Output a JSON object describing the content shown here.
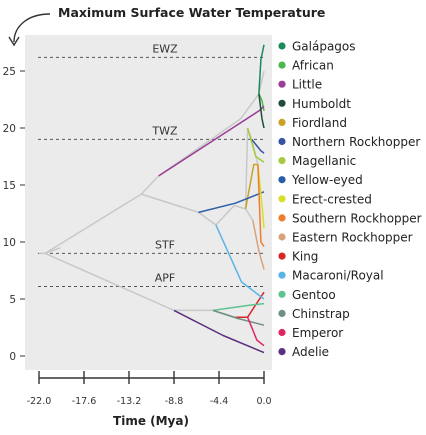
{
  "chart_data": {
    "type": "line",
    "title": "Maximum Surface Water Temperature",
    "xlabel": "Time (Mya)",
    "ylabel": "",
    "xlim": [
      -22.0,
      0.0
    ],
    "ylim": [
      0,
      27.5
    ],
    "x_ticks": [
      "-22.0",
      "-17.6",
      "-13.2",
      "-8.8",
      "-4.4",
      "0.0"
    ],
    "x_tick_values": [
      -22.0,
      -17.6,
      -13.2,
      -8.8,
      -4.4,
      0.0
    ],
    "y_ticks": [
      "0",
      "5",
      "10",
      "15",
      "20",
      "25"
    ],
    "y_tick_values": [
      0,
      5,
      10,
      15,
      20,
      25
    ],
    "grid": false,
    "legend_position": "right",
    "reference_lines": [
      {
        "label": "EWZ",
        "y": 26.2
      },
      {
        "label": "TWZ",
        "y": 19.0
      },
      {
        "label": "STF",
        "y": 9.0
      },
      {
        "label": "APF",
        "y": 6.1
      }
    ],
    "ancestral_color": "#c8c8c8",
    "ancestral_branches": [
      {
        "x": [
          -22.0,
          -21.4,
          -19.9
        ],
        "y": [
          9.0,
          9.0,
          9.5
        ]
      },
      {
        "x": [
          -21.4,
          -12.0
        ],
        "y": [
          9.0,
          14.2
        ]
      },
      {
        "x": [
          -12.0,
          -10.3
        ],
        "y": [
          14.2,
          15.8
        ]
      },
      {
        "x": [
          -10.3,
          -2.3
        ],
        "y": [
          15.8,
          20.8
        ]
      },
      {
        "x": [
          -2.3,
          -0.5
        ],
        "y": [
          20.8,
          23.0
        ]
      },
      {
        "x": [
          -0.5,
          0.0
        ],
        "y": [
          23.0,
          25.0
        ]
      },
      {
        "x": [
          -12.0,
          -6.4
        ],
        "y": [
          14.2,
          12.6
        ]
      },
      {
        "x": [
          -6.4,
          -4.7
        ],
        "y": [
          12.6,
          11.5
        ]
      },
      {
        "x": [
          -4.7,
          -2.9
        ],
        "y": [
          11.5,
          13.2
        ]
      },
      {
        "x": [
          -2.9,
          -1.8
        ],
        "y": [
          13.2,
          12.9
        ]
      },
      {
        "x": [
          -1.8,
          -1.6
        ],
        "y": [
          12.9,
          20.0
        ]
      },
      {
        "x": [
          -1.6,
          -1.2
        ],
        "y": [
          20.0,
          19.0
        ]
      },
      {
        "x": [
          -1.2,
          -0.6
        ],
        "y": [
          19.0,
          16.8
        ]
      },
      {
        "x": [
          -1.8,
          -1.1
        ],
        "y": [
          12.9,
          11.9
        ]
      },
      {
        "x": [
          -21.4,
          -8.8
        ],
        "y": [
          9.0,
          4.0
        ]
      },
      {
        "x": [
          -8.8,
          -5.0
        ],
        "y": [
          4.0,
          4.0
        ]
      },
      {
        "x": [
          -5.0,
          -2.8
        ],
        "y": [
          4.0,
          3.4
        ]
      },
      {
        "x": [
          -2.8,
          -1.6
        ],
        "y": [
          3.4,
          3.4
        ]
      }
    ],
    "series": [
      {
        "name": "Galápagos",
        "color": "#1a8a5a",
        "x": [
          -0.5,
          -0.3,
          0.0
        ],
        "y": [
          23.0,
          26.0,
          27.3
        ]
      },
      {
        "name": "African",
        "color": "#4cb84c",
        "x": [
          -0.5,
          -0.2,
          0.0
        ],
        "y": [
          23.0,
          22.4,
          21.5
        ]
      },
      {
        "name": "Little",
        "color": "#9b3d96",
        "x": [
          -10.3,
          -0.5,
          0.0
        ],
        "y": [
          15.8,
          21.5,
          21.9
        ]
      },
      {
        "name": "Humboldt",
        "color": "#1e4d3a",
        "x": [
          -0.5,
          -0.2,
          0.0
        ],
        "y": [
          23.0,
          20.8,
          20.0
        ]
      },
      {
        "name": "Fiordland",
        "color": "#c9a227",
        "x": [
          -1.8,
          -1.0,
          -0.6
        ],
        "y": [
          12.9,
          16.8,
          16.8
        ]
      },
      {
        "name": "Northern Rockhopper",
        "color": "#3552a3",
        "x": [
          -1.2,
          -0.3,
          0.0
        ],
        "y": [
          19.0,
          18.0,
          17.8
        ]
      },
      {
        "name": "Magellanic",
        "color": "#a6c93e",
        "x": [
          -1.6,
          -0.8,
          0.0
        ],
        "y": [
          20.0,
          17.5,
          17.0
        ]
      },
      {
        "name": "Yellow-eyed",
        "color": "#2b5ea8",
        "x": [
          -6.4,
          -2.8,
          0.0
        ],
        "y": [
          12.6,
          13.4,
          14.4
        ]
      },
      {
        "name": "Erect-crested",
        "color": "#d8df2a",
        "x": [
          -0.6,
          -0.2,
          0.0
        ],
        "y": [
          16.8,
          13.2,
          11.2
        ]
      },
      {
        "name": "Southern Rockhopper",
        "color": "#ef7d2c",
        "x": [
          -0.6,
          -0.3,
          0.0
        ],
        "y": [
          16.8,
          10.0,
          9.6
        ]
      },
      {
        "name": "Eastern Rockhopper",
        "color": "#d9a27c",
        "x": [
          -1.1,
          -0.5,
          0.0
        ],
        "y": [
          11.9,
          9.2,
          7.6
        ]
      },
      {
        "name": "King",
        "color": "#d62728",
        "x": [
          -2.8,
          -1.6,
          0.0
        ],
        "y": [
          3.4,
          3.4,
          5.6
        ]
      },
      {
        "name": "Macaroni/Royal",
        "color": "#5ab4e5",
        "x": [
          -4.7,
          -2.2,
          0.0
        ],
        "y": [
          11.5,
          6.5,
          5.0
        ]
      },
      {
        "name": "Gentoo",
        "color": "#5fc48f",
        "x": [
          -5.0,
          -1.8,
          0.0
        ],
        "y": [
          4.0,
          4.4,
          4.6
        ]
      },
      {
        "name": "Chinstrap",
        "color": "#6f8f80",
        "x": [
          -5.0,
          -2.6,
          0.0
        ],
        "y": [
          4.0,
          3.3,
          2.7
        ]
      },
      {
        "name": "Emperor",
        "color": "#e0265f",
        "x": [
          -1.6,
          -0.7,
          0.0
        ],
        "y": [
          3.4,
          1.4,
          0.9
        ]
      },
      {
        "name": "Adelie",
        "color": "#5b2e7f",
        "x": [
          -8.8,
          -4.0,
          0.0
        ],
        "y": [
          4.0,
          1.8,
          0.3
        ]
      }
    ]
  }
}
